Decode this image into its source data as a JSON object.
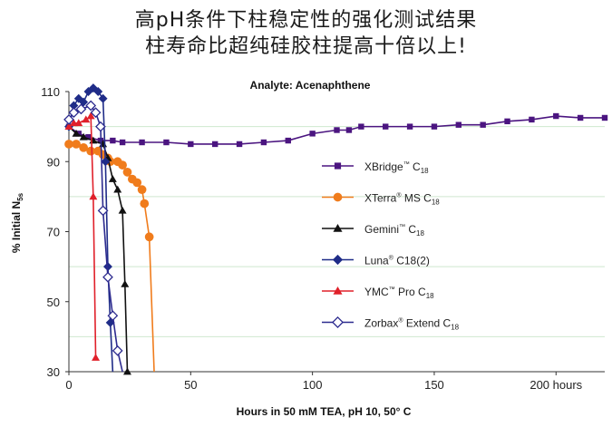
{
  "page": {
    "heading_line1": "高pH条件下柱稳定性的强化测试结果",
    "heading_line2": "柱寿命比超纯硅胶柱提高十倍以上!"
  },
  "chart_data": {
    "type": "line",
    "title": "Analyte: Acenaphthene",
    "xlabel": "Hours in 50 mM TEA, pH 10, 50° C",
    "ylabel_main": "% Initial N",
    "ylabel_sub": "5s",
    "xlim": [
      0,
      220
    ],
    "ylim": [
      30,
      110
    ],
    "x_ticks": [
      "0",
      "50",
      "100",
      "150",
      "200 hours"
    ],
    "x_tick_values": [
      0,
      50,
      100,
      150,
      200
    ],
    "y_ticks": [
      "30",
      "50",
      "70",
      "90",
      "110"
    ],
    "y_tick_values": [
      30,
      50,
      70,
      90,
      110
    ],
    "grid": {
      "horizontal_at": [
        40,
        60,
        80,
        100
      ],
      "color": "#cfe8cf"
    },
    "legend_placement": "right",
    "series": [
      {
        "name": "XBridge",
        "mark": "™",
        "sub": "18",
        "label_tail": " C",
        "color": "#4b1580",
        "marker": "square",
        "points": [
          [
            0,
            100
          ],
          [
            4,
            98
          ],
          [
            8,
            97
          ],
          [
            13,
            96
          ],
          [
            18,
            96
          ],
          [
            22,
            95.5
          ],
          [
            30,
            95.5
          ],
          [
            40,
            95.5
          ],
          [
            50,
            95
          ],
          [
            60,
            95
          ],
          [
            70,
            95
          ],
          [
            80,
            95.5
          ],
          [
            90,
            96
          ],
          [
            100,
            98
          ],
          [
            110,
            99
          ],
          [
            115,
            99
          ],
          [
            120,
            100
          ],
          [
            130,
            100
          ],
          [
            140,
            100
          ],
          [
            150,
            100
          ],
          [
            160,
            100.5
          ],
          [
            170,
            100.5
          ],
          [
            180,
            101.5
          ],
          [
            190,
            102
          ],
          [
            200,
            103
          ],
          [
            210,
            102.5
          ],
          [
            220,
            102.5
          ]
        ]
      },
      {
        "name": "XTerra",
        "mark": "®",
        "sub": "18",
        "label_tail": " MS C",
        "color": "#f07c1c",
        "marker": "circle",
        "points": [
          [
            0,
            95
          ],
          [
            3,
            95
          ],
          [
            6,
            94
          ],
          [
            9,
            93
          ],
          [
            12,
            93
          ],
          [
            14,
            92
          ],
          [
            16,
            91
          ],
          [
            17,
            90
          ],
          [
            20,
            90
          ],
          [
            22,
            89
          ],
          [
            24,
            87
          ],
          [
            26,
            85
          ],
          [
            28,
            84
          ],
          [
            30,
            82
          ],
          [
            31,
            78
          ],
          [
            33,
            68.5
          ],
          [
            35,
            30
          ]
        ]
      },
      {
        "name": "Gemini",
        "mark": "™",
        "sub": "18",
        "label_tail": " C",
        "color": "#111111",
        "marker": "triangle",
        "points": [
          [
            0,
            100
          ],
          [
            3,
            98
          ],
          [
            6,
            97
          ],
          [
            10,
            96
          ],
          [
            14,
            95
          ],
          [
            16,
            91
          ],
          [
            18,
            85
          ],
          [
            20,
            82
          ],
          [
            22,
            76
          ],
          [
            23,
            55
          ],
          [
            24,
            30
          ]
        ]
      },
      {
        "name": "Luna",
        "mark": "®",
        "sub": "",
        "label_tail": " C18(2)",
        "color": "#1f2c88",
        "marker": "diamond",
        "points": [
          [
            0,
            100
          ],
          [
            2,
            106
          ],
          [
            4,
            108
          ],
          [
            6,
            107
          ],
          [
            8,
            110
          ],
          [
            10,
            111
          ],
          [
            12,
            110
          ],
          [
            14,
            108
          ],
          [
            15,
            90
          ],
          [
            16,
            60
          ],
          [
            17,
            44
          ],
          [
            18,
            30
          ]
        ]
      },
      {
        "name": "YMC",
        "mark": "™",
        "sub": "18",
        "label_tail": " Pro C",
        "color": "#e0202a",
        "marker": "triangle",
        "points": [
          [
            0,
            100
          ],
          [
            2,
            101
          ],
          [
            4,
            101
          ],
          [
            7,
            102
          ],
          [
            9,
            103
          ],
          [
            10,
            80
          ],
          [
            11,
            34
          ]
        ]
      },
      {
        "name": "Zorbax",
        "mark": "®",
        "sub": "18",
        "label_tail": " Extend C",
        "color": "#2d2b8f",
        "marker": "diamond_open",
        "points": [
          [
            0,
            102
          ],
          [
            2,
            104
          ],
          [
            5,
            105
          ],
          [
            9,
            106
          ],
          [
            11,
            104
          ],
          [
            13,
            100
          ],
          [
            14,
            76
          ],
          [
            16,
            57
          ],
          [
            18,
            46
          ],
          [
            20,
            36
          ],
          [
            22,
            30
          ]
        ]
      }
    ]
  }
}
